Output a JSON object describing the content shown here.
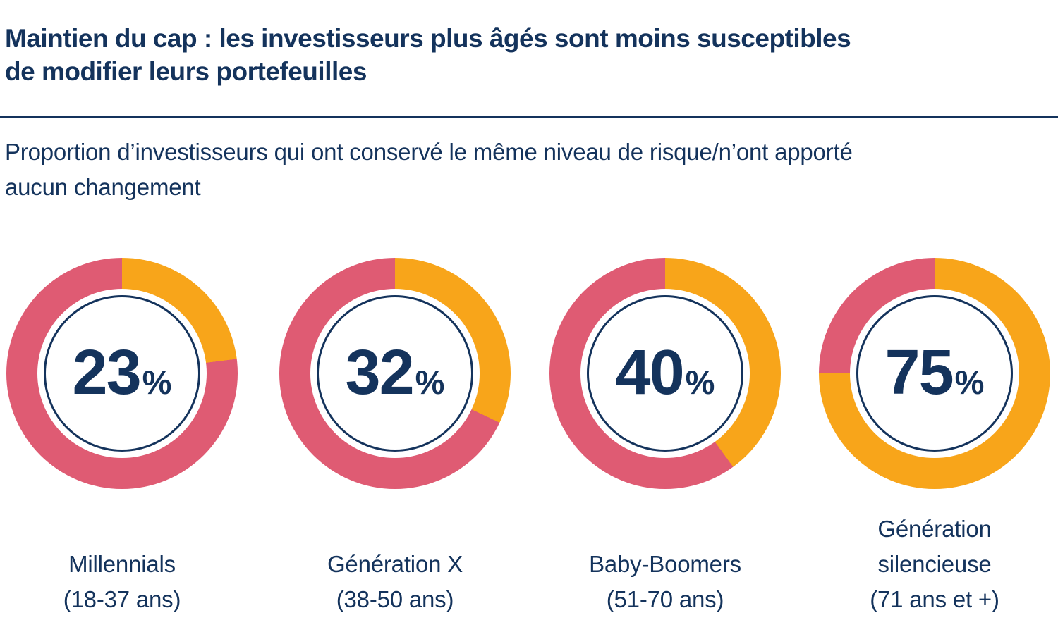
{
  "header": {
    "title_line1": "Maintien du cap : les investisseurs plus âgés sont moins susceptibles",
    "title_line2": "de modifier leurs portefeuilles",
    "subtitle_line1": "Proportion d’investisseurs qui ont conservé le même niveau de risque/n’ont apporté",
    "subtitle_line2": "aucun changement"
  },
  "colors": {
    "navy_text": "#14335C",
    "value_orange": "#F8A51A",
    "remainder_pink": "#DF5B73",
    "background": "#FFFFFF"
  },
  "chart_data": {
    "type": "pie",
    "variant": "donut_multiples",
    "title": "Maintien du cap : les investisseurs plus âgés sont moins susceptibles de modifier leurs portefeuilles",
    "subtitle": "Proportion d’investisseurs qui ont conservé le même niveau de risque/n’ont apporté aucun changement",
    "unit": "%",
    "value_color": "#F8A51A",
    "remainder_color": "#DF5B73",
    "start_angle_deg": 0,
    "direction": "clockwise",
    "legend": "none",
    "donuts": [
      {
        "label": "Millennials",
        "age_range": "(18-37 ans)",
        "value": 23,
        "remainder": 77
      },
      {
        "label": "Génération X",
        "age_range": "(38-50 ans)",
        "value": 32,
        "remainder": 68
      },
      {
        "label": "Baby-Boomers",
        "age_range": "(51-70 ans)",
        "value": 40,
        "remainder": 60
      },
      {
        "label": "Génération silencieuse",
        "age_range": "(71 ans et +)",
        "value": 75,
        "remainder": 25
      }
    ]
  }
}
